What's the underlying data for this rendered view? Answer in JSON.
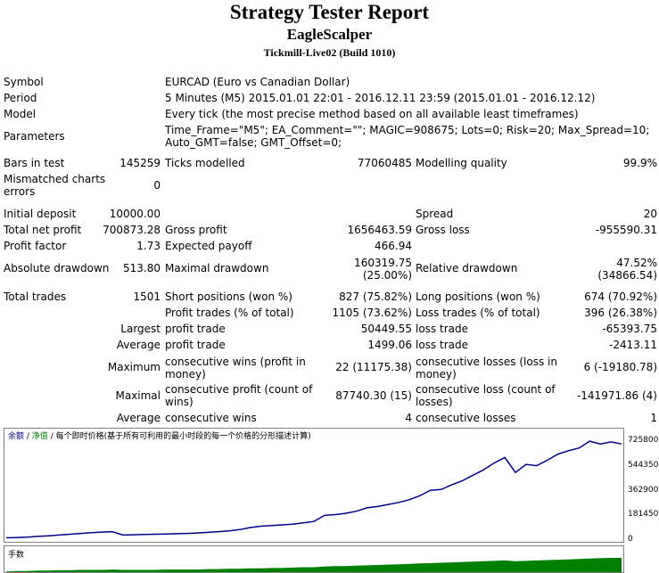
{
  "header": {
    "title": "Strategy Tester Report",
    "ea_name": "EagleScalper",
    "server": "Tickmill-Live02 (Build 1010)"
  },
  "info": {
    "symbol_label": "Symbol",
    "symbol_value": "EURCAD (Euro vs Canadian Dollar)",
    "period_label": "Period",
    "period_value": "5 Minutes (M5) 2015.01.01 22:01 - 2016.12.11 23:59 (2015.01.01 - 2016.12.12)",
    "model_label": "Model",
    "model_value": "Every tick (the most precise method based on all available least timeframes)",
    "parameters_label": "Parameters",
    "parameters_line1": "Time_Frame=\"M5\"; EA_Comment=\"\"; MAGIC=908675; Lots=0; Risk=20; Max_Spread=10;",
    "parameters_line2": "Auto_GMT=false; GMT_Offset=0;"
  },
  "stats1": {
    "bars_label": "Bars in test",
    "bars_value": "145259",
    "ticks_label": "Ticks modelled",
    "ticks_value": "77060485",
    "quality_label": "Modelling quality",
    "quality_value": "99.9%",
    "mismatch_label_1": "Mismatched charts",
    "mismatch_label_2": "errors",
    "mismatch_value": "0"
  },
  "stats2": {
    "deposit_label": "Initial deposit",
    "deposit_value": "10000.00",
    "spread_label": "Spread",
    "spread_value": "20",
    "net_label": "Total net profit",
    "net_value": "700873.28",
    "gross_profit_label": "Gross profit",
    "gross_profit_value": "1656463.59",
    "gross_loss_label": "Gross loss",
    "gross_loss_value": "-955590.31",
    "pf_label": "Profit factor",
    "pf_value": "1.73",
    "ep_label": "Expected payoff",
    "ep_value": "466.94",
    "abs_dd_label": "Absolute drawdown",
    "abs_dd_value": "513.80",
    "max_dd_label": "Maximal drawdown",
    "max_dd_value_1": "160319.75",
    "max_dd_value_2": "(25.00%)",
    "rel_dd_label": "Relative drawdown",
    "rel_dd_value_1": "47.52%",
    "rel_dd_value_2": "(34866.54)"
  },
  "trades": {
    "total_label": "Total trades",
    "total_value": "1501",
    "short_label": "Short positions (won %)",
    "short_value": "827 (75.82%)",
    "long_label": "Long positions (won %)",
    "long_value": "674 (70.92%)",
    "profit_trades_label": "Profit trades (% of total)",
    "profit_trades_value": "1105 (73.62%)",
    "loss_trades_label": "Loss trades (% of total)",
    "loss_trades_value": "396 (26.38%)",
    "largest_label": "Largest",
    "largest_profit_label": "profit trade",
    "largest_profit_value": "50449.55",
    "largest_loss_label": "loss trade",
    "largest_loss_value": "-65393.75",
    "average_label": "Average",
    "average_profit_label": "profit trade",
    "average_profit_value": "1499.06",
    "average_loss_label": "loss trade",
    "average_loss_value": "-2413.11",
    "maximum_label": "Maximum",
    "max_wins_label_1": "consecutive wins (profit in",
    "max_wins_label_2": "money)",
    "max_wins_value": "22 (11175.38)",
    "max_losses_label_1": "consecutive losses (loss in",
    "max_losses_label_2": "money)",
    "max_losses_value": "6 (-19180.78)",
    "maximal_label": "Maximal",
    "maximal_profit_label_1": "consecutive profit (count of",
    "maximal_profit_label_2": "wins)",
    "maximal_profit_value": "87740.30 (15)",
    "maximal_loss_label_1": "consecutive loss (count of",
    "maximal_loss_label_2": "losses)",
    "maximal_loss_value": "-141971.86 (4)",
    "avg_consec_label": "Average",
    "avg_wins_label": "consecutive wins",
    "avg_wins_value": "4",
    "avg_losses_label": "consecutive losses",
    "avg_losses_value": "1"
  },
  "graph": {
    "legend_balance": "余额",
    "legend_equity": "净值",
    "legend_caption": "每个即时价格(基于所有可利用的最小时段的每一个价格的分形描述计算)",
    "sub_label": "手数",
    "line_color": "#00008b",
    "lots_color": "#008000"
  },
  "chart_data": {
    "type": "line",
    "ylim": [
      0,
      760000
    ],
    "yticks": [
      "725800",
      "544350",
      "362900",
      "181450",
      "0"
    ],
    "ytick_values": [
      725800,
      544350,
      362900,
      181450,
      0
    ],
    "series": [
      {
        "values": [
          10000,
          12000,
          15000,
          20000,
          25000,
          30000,
          36000,
          42000,
          47000,
          52000,
          55000,
          30000,
          32000,
          35000,
          36000,
          38000,
          40000,
          42000,
          45000,
          50000,
          55000,
          60000,
          70000,
          85000,
          95000,
          100000,
          105000,
          110000,
          120000,
          130000,
          175000,
          180000,
          190000,
          205000,
          230000,
          240000,
          255000,
          270000,
          290000,
          320000,
          360000,
          365000,
          400000,
          430000,
          470000,
          510000,
          560000,
          600000,
          490000,
          550000,
          540000,
          580000,
          625000,
          650000,
          670000,
          720000,
          700000,
          715000,
          700000
        ]
      }
    ],
    "lots_values": [
      2,
      3,
      3,
      4,
      4,
      5,
      5,
      6,
      6,
      6,
      7,
      6,
      6,
      6,
      6,
      7,
      7,
      7,
      7,
      8,
      8,
      9,
      9,
      10,
      10,
      11,
      11,
      12,
      13,
      13,
      15,
      16,
      16,
      17,
      18,
      19,
      20,
      21,
      22,
      23,
      24,
      25,
      26,
      27,
      28,
      29,
      30,
      31,
      29,
      30,
      31,
      32,
      33,
      34,
      35,
      36,
      37,
      38,
      38
    ]
  }
}
